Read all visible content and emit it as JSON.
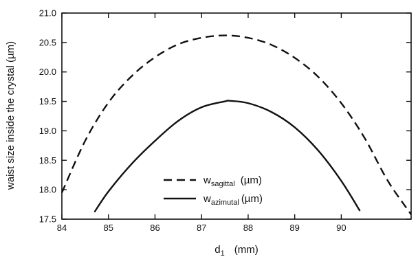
{
  "chart_data": {
    "type": "line",
    "xlabel": "d",
    "xlabel_sub": "1",
    "xlabel_unit": "(mm)",
    "ylabel": "waist size inside the crystal  (µm)",
    "xlim": [
      84,
      91.5
    ],
    "ylim": [
      17.5,
      21.0
    ],
    "x_ticks": [
      84,
      85,
      86,
      87,
      88,
      89,
      90
    ],
    "y_ticks": [
      17.5,
      18.0,
      18.5,
      19.0,
      19.5,
      20.0,
      20.5,
      21.0
    ],
    "x_tick_labels": [
      "84",
      "85",
      "86",
      "87",
      "88",
      "89",
      "90"
    ],
    "y_tick_labels": [
      "17.5",
      "18.0",
      "18.5",
      "19.0",
      "19.5",
      "20.0",
      "20.5",
      "21.0"
    ],
    "grid": false,
    "legend_position": "bottom-center",
    "series": [
      {
        "name": "w",
        "name_sub": "sagittal",
        "name_unit": "(µm)",
        "style": "dashed",
        "color": "#111111",
        "x": [
          84.0,
          84.5,
          85.0,
          85.5,
          86.0,
          86.5,
          87.0,
          87.5,
          88.0,
          88.5,
          89.0,
          89.5,
          90.0,
          90.5,
          91.0,
          91.5
        ],
        "y": [
          17.95,
          18.83,
          19.48,
          19.93,
          20.25,
          20.47,
          20.58,
          20.62,
          20.58,
          20.46,
          20.24,
          19.92,
          19.47,
          18.88,
          18.15,
          17.58
        ]
      },
      {
        "name": "w",
        "name_sub": "azimutal",
        "name_unit": "(µm)",
        "style": "solid",
        "color": "#111111",
        "x": [
          84.7,
          85.0,
          85.5,
          86.0,
          86.5,
          87.0,
          87.5,
          87.6,
          88.0,
          88.5,
          89.0,
          89.5,
          90.0,
          90.4
        ],
        "y": [
          17.62,
          17.97,
          18.44,
          18.83,
          19.17,
          19.4,
          19.5,
          19.51,
          19.47,
          19.32,
          19.06,
          18.67,
          18.15,
          17.64
        ]
      }
    ]
  }
}
